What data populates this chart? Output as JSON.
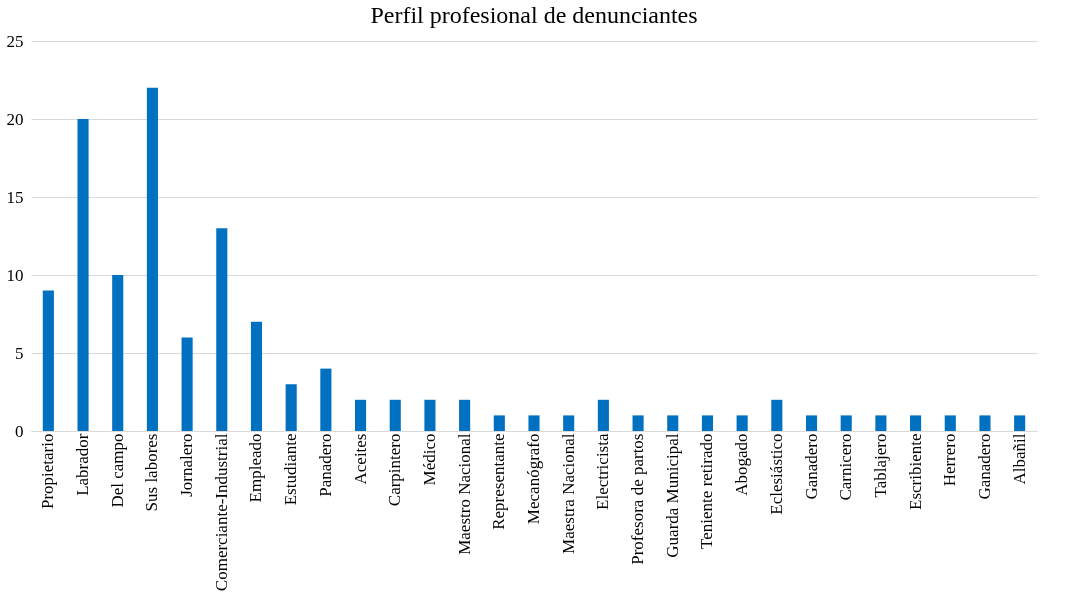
{
  "chart_data": {
    "type": "bar",
    "title": "Perfil profesional de denunciantes",
    "categories": [
      "Propietario",
      "Labrador",
      "Del campo",
      "Sus labores",
      "Jornalero",
      "Comerciante-Industrial",
      "Empleado",
      "Estudiante",
      "Panadero",
      "Aceites",
      "Carpintero",
      "Médico",
      "Maestro Nacional",
      "Representante",
      "Mecanógrafo",
      "Maestra Nacional",
      "Electricista",
      "Profesora de partos",
      "Guarda Municipal",
      "Teniente retirado",
      "Abogado",
      "Eclesiástico",
      "Ganadero",
      "Carnicero",
      "Tablajero",
      "Escribiente",
      "Herrero",
      "Ganadero",
      "Albañil"
    ],
    "values": [
      9,
      20,
      10,
      22,
      6,
      13,
      7,
      3,
      4,
      2,
      2,
      2,
      2,
      1,
      1,
      1,
      2,
      1,
      1,
      1,
      1,
      2,
      1,
      1,
      1,
      1,
      1,
      1,
      1
    ],
    "color": "#0070c0",
    "ylim": [
      0,
      25
    ],
    "yticks": [
      0,
      5,
      10,
      15,
      20,
      25
    ],
    "grid": "y",
    "legend": false
  }
}
